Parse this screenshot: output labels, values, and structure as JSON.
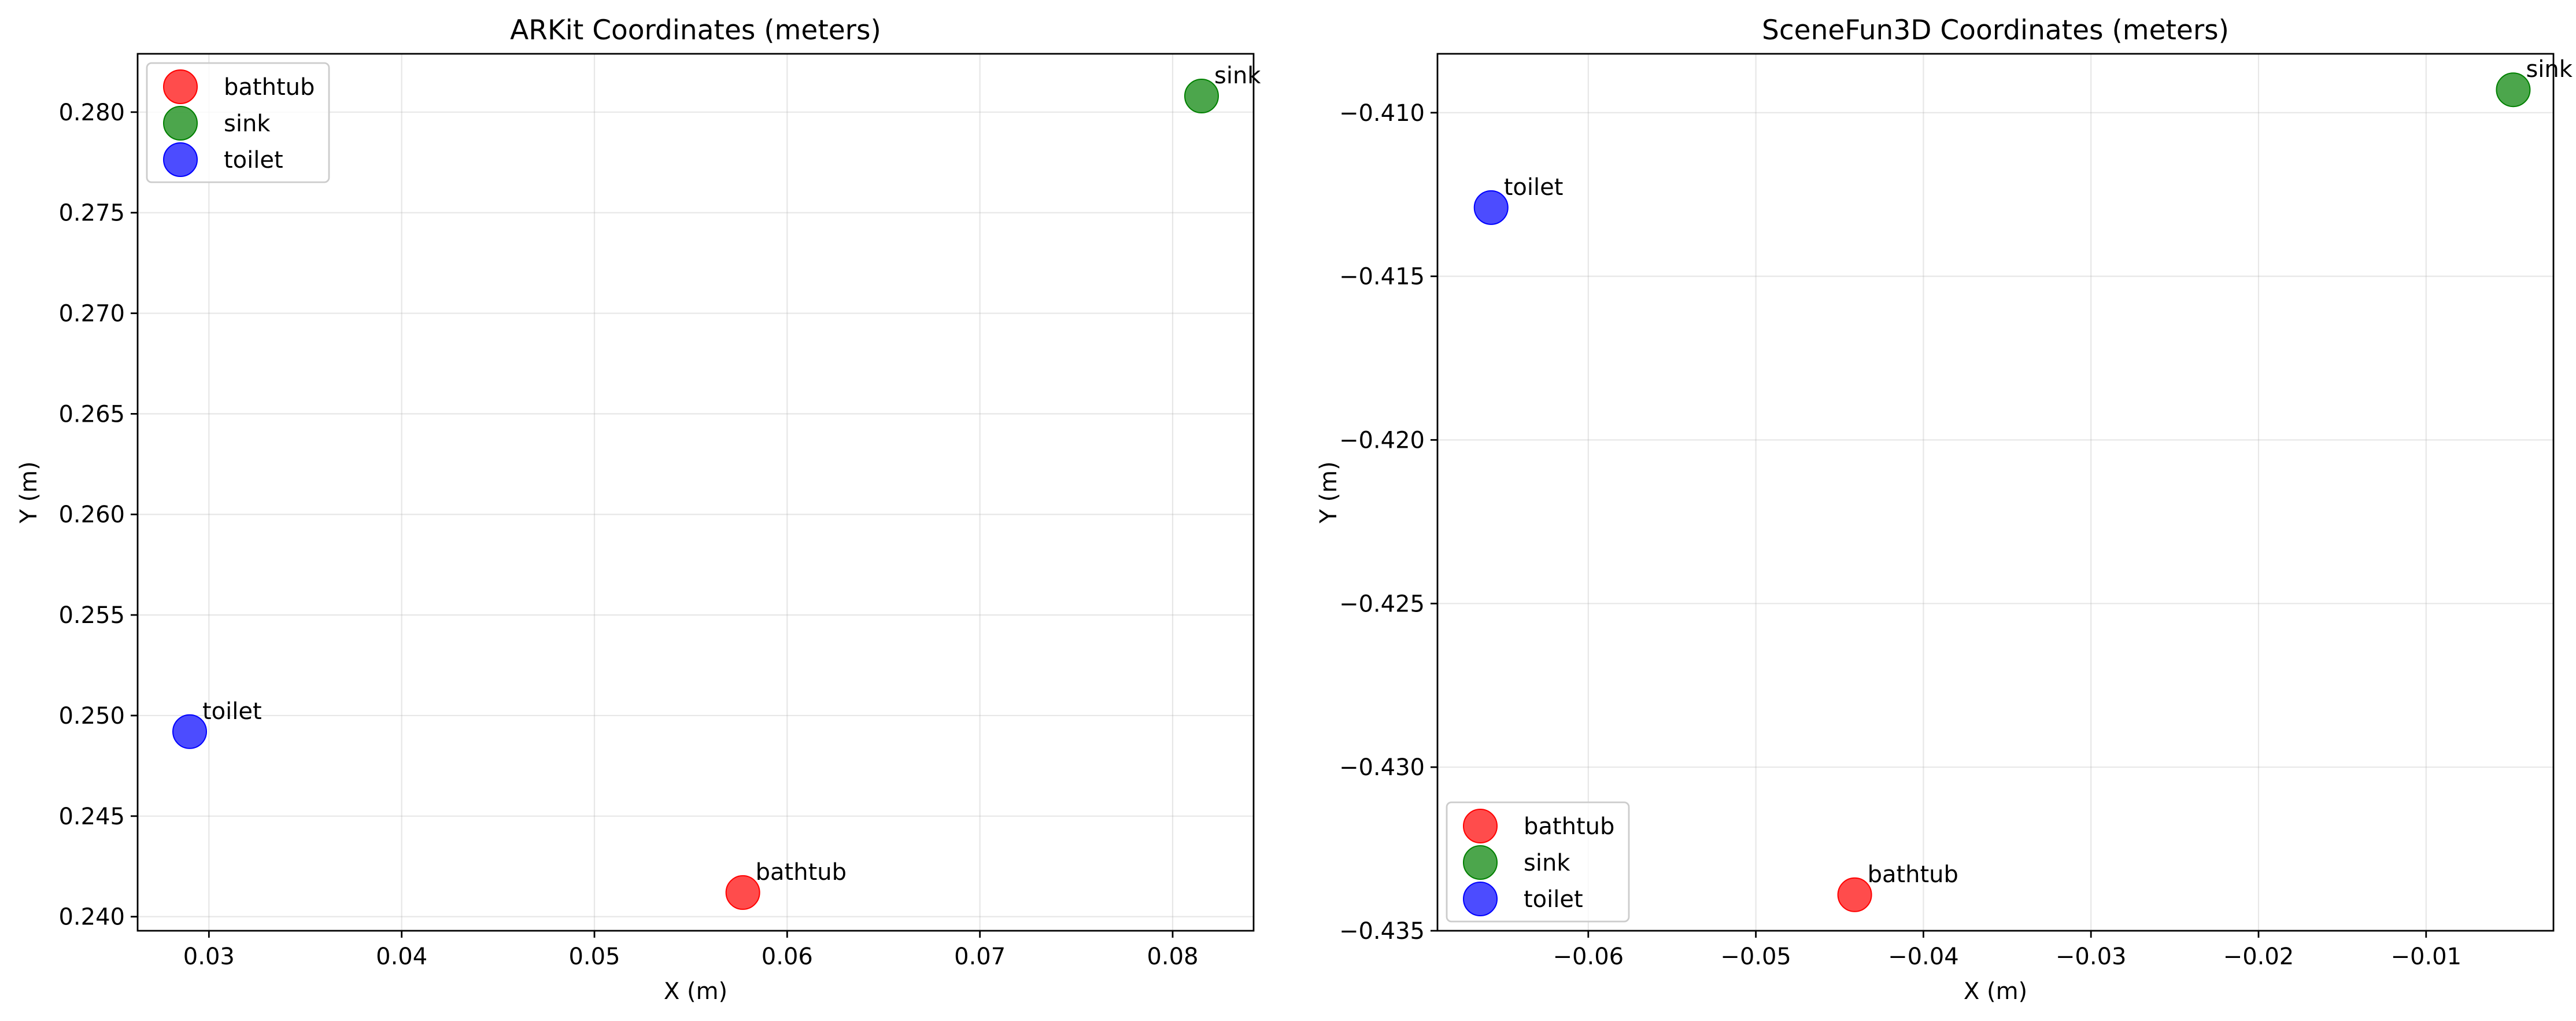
{
  "chart_data": [
    {
      "type": "scatter",
      "title": "ARKit Coordinates (meters)",
      "xlabel": "X (m)",
      "ylabel": "Y (m)",
      "xlim": [
        0.0263,
        0.0842
      ],
      "ylim": [
        0.2393,
        0.2829
      ],
      "xticks": [
        0.03,
        0.04,
        0.05,
        0.06,
        0.07,
        0.08
      ],
      "xtick_labels": [
        "0.03",
        "0.04",
        "0.05",
        "0.06",
        "0.07",
        "0.08"
      ],
      "yticks": [
        0.24,
        0.245,
        0.25,
        0.255,
        0.26,
        0.265,
        0.27,
        0.275,
        0.28
      ],
      "ytick_labels": [
        "0.240",
        "0.245",
        "0.250",
        "0.255",
        "0.260",
        "0.265",
        "0.270",
        "0.275",
        "0.280"
      ],
      "grid": true,
      "legend_position": "top-left",
      "series": [
        {
          "name": "bathtub",
          "color": "#ff0000",
          "points": [
            {
              "x": 0.0577,
              "y": 0.2412,
              "label": "bathtub"
            }
          ]
        },
        {
          "name": "sink",
          "color": "#008000",
          "points": [
            {
              "x": 0.0815,
              "y": 0.2808,
              "label": "sink"
            }
          ]
        },
        {
          "name": "toilet",
          "color": "#0000ff",
          "points": [
            {
              "x": 0.029,
              "y": 0.2492,
              "label": "toilet"
            }
          ]
        }
      ]
    },
    {
      "type": "scatter",
      "title": "SceneFun3D Coordinates (meters)",
      "xlabel": "X (m)",
      "ylabel": "Y (m)",
      "xlim": [
        -0.069,
        -0.0024
      ],
      "ylim": [
        -0.435,
        -0.4082
      ],
      "xticks": [
        -0.06,
        -0.05,
        -0.04,
        -0.03,
        -0.02,
        -0.01
      ],
      "xtick_labels": [
        "−0.06",
        "−0.05",
        "−0.04",
        "−0.03",
        "−0.02",
        "−0.01"
      ],
      "yticks": [
        -0.435,
        -0.43,
        -0.425,
        -0.42,
        -0.415,
        -0.41
      ],
      "ytick_labels": [
        "−0.435",
        "−0.430",
        "−0.425",
        "−0.420",
        "−0.415",
        "−0.410"
      ],
      "grid": true,
      "legend_position": "bottom-left",
      "series": [
        {
          "name": "bathtub",
          "color": "#ff0000",
          "points": [
            {
              "x": -0.0441,
              "y": -0.4339,
              "label": "bathtub"
            }
          ]
        },
        {
          "name": "sink",
          "color": "#008000",
          "points": [
            {
              "x": -0.0048,
              "y": -0.4093,
              "label": "sink"
            }
          ]
        },
        {
          "name": "toilet",
          "color": "#0000ff",
          "points": [
            {
              "x": -0.0658,
              "y": -0.4129,
              "label": "toilet"
            }
          ]
        }
      ]
    }
  ]
}
